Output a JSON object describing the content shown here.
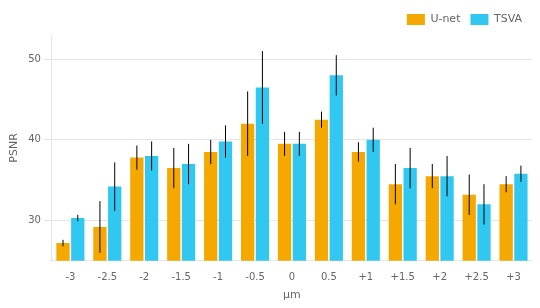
{
  "chart_data": {
    "type": "bar",
    "categories": [
      "-3",
      "-2.5",
      "-2",
      "-1.5",
      "-1",
      "-0.5",
      "0",
      "0.5",
      "+1",
      "+1.5",
      "+2",
      "+2.5",
      "+3"
    ],
    "series": [
      {
        "name": "U-net",
        "color": "#F5A800",
        "values": [
          27.2,
          29.2,
          37.8,
          36.5,
          38.5,
          42.0,
          39.5,
          42.5,
          38.5,
          34.5,
          35.5,
          33.2,
          34.5
        ],
        "errors": [
          0.4,
          3.2,
          1.5,
          2.5,
          1.5,
          4.0,
          1.5,
          1.0,
          1.2,
          2.5,
          1.5,
          2.5,
          1.0
        ]
      },
      {
        "name": "TSVA",
        "color": "#30C8F0",
        "values": [
          30.3,
          34.2,
          38.0,
          37.0,
          39.8,
          46.5,
          39.5,
          48.0,
          40.0,
          36.5,
          35.5,
          32.0,
          35.8
        ],
        "errors": [
          0.4,
          3.0,
          1.8,
          2.5,
          2.0,
          4.5,
          1.5,
          2.5,
          1.5,
          2.5,
          2.5,
          2.5,
          1.0
        ]
      }
    ],
    "ylabel": "PSNR",
    "xlabel": "μm",
    "ylim": [
      25,
      53
    ],
    "yticks": [
      30,
      40,
      50
    ],
    "grid": true,
    "legend": "upper right"
  }
}
